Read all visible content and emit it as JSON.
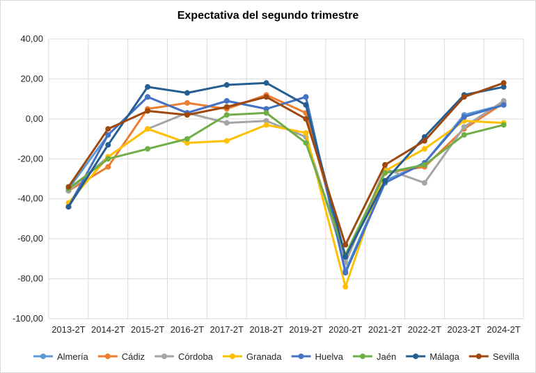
{
  "chart_data": {
    "type": "line",
    "title": "Expectativa del segundo trimestre",
    "categories": [
      "2013-2T",
      "2014-2T",
      "2015-2T",
      "2016-2T",
      "2017-2T",
      "2018-2T",
      "2019-2T",
      "2020-2T",
      "2021-2T",
      "2022-2T",
      "2023-2T",
      "2024-2T"
    ],
    "ylim": [
      -100,
      40
    ],
    "yticks": [
      "-100,00",
      "-80,00",
      "-60,00",
      "-40,00",
      "-20,00",
      "0,00",
      "20,00",
      "40,00"
    ],
    "grid": true,
    "legend": "bottom",
    "series": [
      {
        "name": "Almería",
        "color": "#5b9bd5",
        "values": [
          -35,
          -8,
          11,
          3,
          9,
          5,
          11,
          -76,
          -31,
          -22,
          2,
          7
        ]
      },
      {
        "name": "Cádiz",
        "color": "#ed7d31",
        "values": [
          -36,
          -24,
          5,
          8,
          5,
          12,
          3,
          -70,
          -27,
          -24,
          -5,
          8
        ]
      },
      {
        "name": "Córdoba",
        "color": "#a5a5a5",
        "values": [
          -36,
          -19,
          -5,
          3,
          -2,
          -1,
          -9,
          -72,
          -25,
          -32,
          -4,
          9
        ]
      },
      {
        "name": "Granada",
        "color": "#ffc000",
        "values": [
          -42,
          -19,
          -5,
          -12,
          -11,
          -3,
          -7,
          -84,
          -26,
          -15,
          -1,
          -2
        ]
      },
      {
        "name": "Huelva",
        "color": "#4472c4",
        "values": [
          -44,
          -8,
          11,
          3,
          9,
          5,
          11,
          -77,
          -32,
          -22,
          1,
          7
        ]
      },
      {
        "name": "Jaén",
        "color": "#70ad47",
        "values": [
          -35,
          -20,
          -15,
          -10,
          2,
          3,
          -12,
          -68,
          -27,
          -23,
          -8,
          -3
        ]
      },
      {
        "name": "Málaga",
        "color": "#255e91",
        "values": [
          -44,
          -13,
          16,
          13,
          17,
          18,
          7,
          -69,
          -31,
          -9,
          12,
          16
        ]
      },
      {
        "name": "Sevilla",
        "color": "#9e480e",
        "values": [
          -34,
          -5,
          4,
          2,
          6,
          11,
          0,
          -63,
          -23,
          -11,
          11,
          18
        ]
      }
    ]
  }
}
